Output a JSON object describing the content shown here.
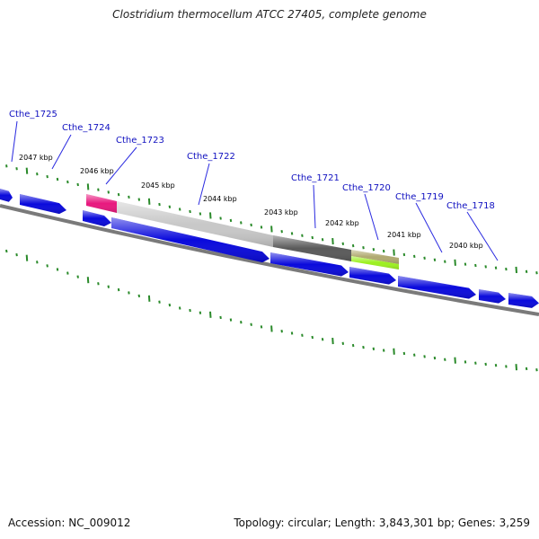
{
  "title": "Clostridium thermocellum ATCC 27405, complete genome",
  "accession": "Accession: NC_009012",
  "topology": "Topology: circular; Length: 3,843,301 bp; Genes: 3,259",
  "colors": {
    "gene": "#0a0adc",
    "backbone": "#808080",
    "tick": "#2a8a2a",
    "gene_label": "#1010c0",
    "leader": "#2a2ae0",
    "feature_magenta": "#e8187e",
    "feature_lightgray": "#c8c8c8",
    "feature_darkgray": "#5a5a5a",
    "feature_olive": "#b0aa70",
    "feature_green": "#9cf020"
  },
  "gene_labels": [
    {
      "id": "Cthe_1725"
    },
    {
      "id": "Cthe_1724"
    },
    {
      "id": "Cthe_1723"
    },
    {
      "id": "Cthe_1722"
    },
    {
      "id": "Cthe_1721"
    },
    {
      "id": "Cthe_1720"
    },
    {
      "id": "Cthe_1719"
    },
    {
      "id": "Cthe_1718"
    }
  ],
  "kbp_labels": [
    "2047 kbp",
    "2046 kbp",
    "2045 kbp",
    "2044 kbp",
    "2043 kbp",
    "2042 kbp",
    "2041 kbp",
    "2040 kbp"
  ]
}
